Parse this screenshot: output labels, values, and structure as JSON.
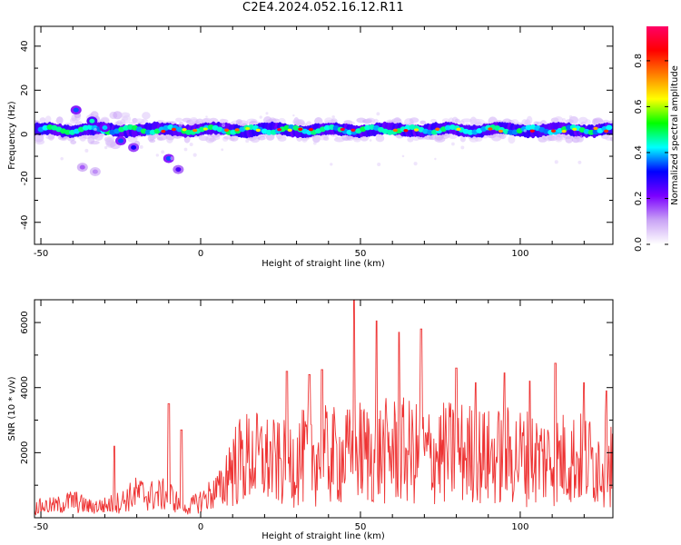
{
  "title": "C2E4.2024.052.16.12.R11",
  "chart_data": [
    {
      "type": "heatmap",
      "name": "spectrogram",
      "xlabel": "Height of straight line (km)",
      "ylabel": "Frequency (Hz)",
      "xlim": [
        -52,
        129
      ],
      "ylim": [
        -50,
        49
      ],
      "xticks": [
        -50,
        0,
        50,
        100
      ],
      "yticks": [
        -40,
        -20,
        0,
        20,
        40
      ],
      "colorbar": {
        "label": "Normalized spectral amplitude",
        "range": [
          0.0,
          0.95
        ],
        "ticks": [
          "0.0",
          "0.2",
          "0.4",
          "0.6",
          "0.8"
        ],
        "colors": [
          "#ffffff",
          "#c9a3f5",
          "#7b00ff",
          "#0000ff",
          "#00ffff",
          "#00ff00",
          "#ffff00",
          "#ff8000",
          "#ff0000",
          "#ff0066"
        ]
      },
      "dominant_frequency_hz": 2,
      "band_halfwidth_hz": 3,
      "features": [
        {
          "x": -39,
          "y": 11,
          "amplitude": 0.35
        },
        {
          "x": -34,
          "y": 6,
          "amplitude": 0.45
        },
        {
          "x": -30,
          "y": 3,
          "amplitude": 0.4
        },
        {
          "x": -25,
          "y": -3,
          "amplitude": 0.35
        },
        {
          "x": -21,
          "y": -6,
          "amplitude": 0.3
        },
        {
          "x": -10,
          "y": -11,
          "amplitude": 0.35
        },
        {
          "x": -7,
          "y": -16,
          "amplitude": 0.25
        },
        {
          "x": -37,
          "y": -15,
          "amplitude": 0.15
        },
        {
          "x": -33,
          "y": -17,
          "amplitude": 0.12
        }
      ]
    },
    {
      "type": "line",
      "name": "snr",
      "xlabel": "Height of straight line (km)",
      "ylabel": "SNR (10 * v/v)",
      "xlim": [
        -52,
        129
      ],
      "ylim": [
        0,
        6700
      ],
      "xticks": [
        -50,
        0,
        50,
        100
      ],
      "yticks": [
        2000,
        4000,
        6000
      ],
      "color": "#ee3333",
      "x": [
        -52,
        -45,
        -40,
        -35,
        -30,
        -25,
        -20,
        -15,
        -10,
        -5,
        0,
        5,
        10,
        15,
        20,
        25,
        30,
        35,
        40,
        45,
        50,
        55,
        60,
        65,
        70,
        75,
        80,
        85,
        90,
        95,
        100,
        105,
        110,
        115,
        120,
        125,
        129
      ],
      "y": [
        450,
        500,
        700,
        450,
        500,
        650,
        1000,
        900,
        950,
        350,
        700,
        1100,
        1400,
        1600,
        1550,
        1400,
        1550,
        1650,
        1650,
        1600,
        1750,
        1700,
        1800,
        1750,
        1650,
        1700,
        1750,
        1700,
        1600,
        1650,
        1650,
        1600,
        1550,
        1600,
        1550,
        1500,
        1500
      ],
      "peaks": [
        {
          "x": -10,
          "y": 3500
        },
        {
          "x": -27,
          "y": 2200
        },
        {
          "x": -6,
          "y": 2700
        },
        {
          "x": 27,
          "y": 4500
        },
        {
          "x": 34,
          "y": 4400
        },
        {
          "x": 38,
          "y": 4550
        },
        {
          "x": 48,
          "y": 6700
        },
        {
          "x": 55,
          "y": 6050
        },
        {
          "x": 62,
          "y": 5700
        },
        {
          "x": 69,
          "y": 5800
        },
        {
          "x": 80,
          "y": 4600
        },
        {
          "x": 86,
          "y": 4150
        },
        {
          "x": 95,
          "y": 4450
        },
        {
          "x": 103,
          "y": 4200
        },
        {
          "x": 111,
          "y": 4750
        },
        {
          "x": 120,
          "y": 4150
        },
        {
          "x": 127,
          "y": 3900
        }
      ]
    }
  ]
}
